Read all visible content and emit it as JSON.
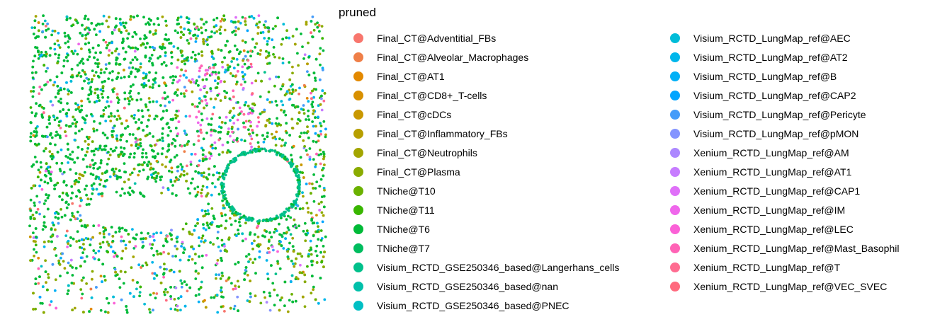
{
  "chart_data": {
    "type": "scatter",
    "legend": {
      "title": "pruned",
      "placement": "right",
      "columns": 2
    },
    "series": [
      {
        "name": "Final_CT@Adventitial_FBs",
        "color": "#F8766D"
      },
      {
        "name": "Final_CT@Alveolar_Macrophages",
        "color": "#EF7F48"
      },
      {
        "name": "Final_CT@AT1",
        "color": "#E38900"
      },
      {
        "name": "Final_CT@CD8+_T-cells",
        "color": "#D89000"
      },
      {
        "name": "Final_CT@cDCs",
        "color": "#C99800"
      },
      {
        "name": "Final_CT@Inflammatory_FBs",
        "color": "#B79F00"
      },
      {
        "name": "Final_CT@Neutrophils",
        "color": "#A3A500"
      },
      {
        "name": "Final_CT@Plasma",
        "color": "#8AAB00"
      },
      {
        "name": "TNiche@T10",
        "color": "#6BB100"
      },
      {
        "name": "TNiche@T11",
        "color": "#39B600"
      },
      {
        "name": "TNiche@T6",
        "color": "#00BA38"
      },
      {
        "name": "TNiche@T7",
        "color": "#00BD5F"
      },
      {
        "name": "Visium_RCTD_GSE250346_based@Langerhans_cells",
        "color": "#00C08B"
      },
      {
        "name": "Visium_RCTD_GSE250346_based@nan",
        "color": "#00C0AA"
      },
      {
        "name": "Visium_RCTD_GSE250346_based@PNEC",
        "color": "#00BFC4"
      },
      {
        "name": "Visium_RCTD_LungMap_ref@AEC",
        "color": "#00BCD8"
      },
      {
        "name": "Visium_RCTD_LungMap_ref@AT2",
        "color": "#00B6EB"
      },
      {
        "name": "Visium_RCTD_LungMap_ref@B",
        "color": "#00B0F6"
      },
      {
        "name": "Visium_RCTD_LungMap_ref@CAP2",
        "color": "#00A5FF"
      },
      {
        "name": "Visium_RCTD_LungMap_ref@Pericyte",
        "color": "#469CF9"
      },
      {
        "name": "Visium_RCTD_LungMap_ref@pMON",
        "color": "#8494FF"
      },
      {
        "name": "Xenium_RCTD_LungMap_ref@AM",
        "color": "#AC88FF"
      },
      {
        "name": "Xenium_RCTD_LungMap_ref@AT1",
        "color": "#C77CFF"
      },
      {
        "name": "Xenium_RCTD_LungMap_ref@CAP1",
        "color": "#DF70F8"
      },
      {
        "name": "Xenium_RCTD_LungMap_ref@IM",
        "color": "#EF67EB"
      },
      {
        "name": "Xenium_RCTD_LungMap_ref@LEC",
        "color": "#FB61D7"
      },
      {
        "name": "Xenium_RCTD_LungMap_ref@Mast_Basophil",
        "color": "#FF63B6"
      },
      {
        "name": "Xenium_RCTD_LungMap_ref@T",
        "color": "#FF6C91"
      },
      {
        "name": "Xenium_RCTD_LungMap_ref@VEC_SVEC",
        "color": "#FF6A7E"
      }
    ],
    "grid": false,
    "axes": "none"
  }
}
